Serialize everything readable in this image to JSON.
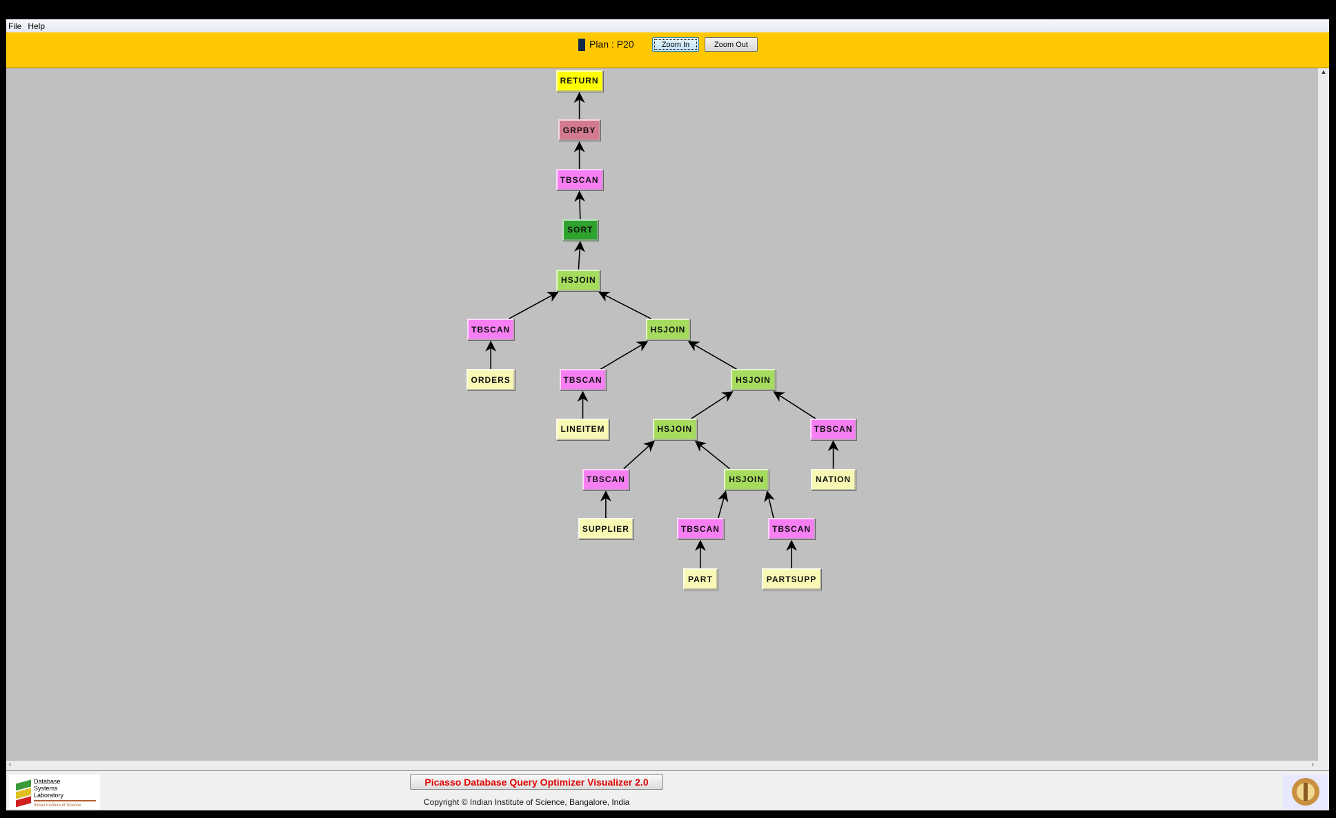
{
  "menu": {
    "items": [
      "File",
      "Help"
    ]
  },
  "toolbar": {
    "plan_label": "Plan : P20",
    "zoom_in": "Zoom In",
    "zoom_out": "Zoom Out",
    "plan_color": "#10284a"
  },
  "colors": {
    "RETURN": "#ffff00",
    "GRPBY": "#d47a90",
    "TBSCAN": "#f77ff3",
    "SORT": "#2ea32e",
    "HSJOIN": "#a6dc5e",
    "TABLE": "#f8f8b4",
    "background": "#c0c0c0",
    "toolbar": "#ffc800"
  },
  "plan_tree": {
    "nodes": [
      {
        "id": "n1",
        "label": "RETURN",
        "type": "RETURN"
      },
      {
        "id": "n2",
        "label": "GRPBY",
        "type": "GRPBY",
        "parent": "n1"
      },
      {
        "id": "n3",
        "label": "TBSCAN",
        "type": "TBSCAN",
        "parent": "n2"
      },
      {
        "id": "n4",
        "label": "SORT",
        "type": "SORT",
        "parent": "n3"
      },
      {
        "id": "n5",
        "label": "HSJOIN",
        "type": "HSJOIN",
        "parent": "n4"
      },
      {
        "id": "n6",
        "label": "TBSCAN",
        "type": "TBSCAN",
        "parent": "n5"
      },
      {
        "id": "n7",
        "label": "HSJOIN",
        "type": "HSJOIN",
        "parent": "n5"
      },
      {
        "id": "n8",
        "label": "ORDERS",
        "type": "TABLE",
        "parent": "n6"
      },
      {
        "id": "n9",
        "label": "TBSCAN",
        "type": "TBSCAN",
        "parent": "n7"
      },
      {
        "id": "n10",
        "label": "HSJOIN",
        "type": "HSJOIN",
        "parent": "n7"
      },
      {
        "id": "n11",
        "label": "LINEITEM",
        "type": "TABLE",
        "parent": "n9"
      },
      {
        "id": "n12",
        "label": "HSJOIN",
        "type": "HSJOIN",
        "parent": "n10"
      },
      {
        "id": "n13",
        "label": "TBSCAN",
        "type": "TBSCAN",
        "parent": "n10"
      },
      {
        "id": "n14",
        "label": "TBSCAN",
        "type": "TBSCAN",
        "parent": "n12"
      },
      {
        "id": "n15",
        "label": "HSJOIN",
        "type": "HSJOIN",
        "parent": "n12"
      },
      {
        "id": "n16",
        "label": "NATION",
        "type": "TABLE",
        "parent": "n13"
      },
      {
        "id": "n17",
        "label": "SUPPLIER",
        "type": "TABLE",
        "parent": "n14"
      },
      {
        "id": "n18",
        "label": "TBSCAN",
        "type": "TBSCAN",
        "parent": "n15"
      },
      {
        "id": "n19",
        "label": "TBSCAN",
        "type": "TBSCAN",
        "parent": "n15"
      },
      {
        "id": "n20",
        "label": "PART",
        "type": "TABLE",
        "parent": "n18"
      },
      {
        "id": "n21",
        "label": "PARTSUPP",
        "type": "TABLE",
        "parent": "n19"
      }
    ]
  },
  "footer": {
    "title": "Picasso Database Query Optimizer Visualizer 2.0",
    "copyright": "Copyright © Indian Institute of Science, Bangalore, India",
    "logo_text": "Database Systems Laboratory",
    "logo_subtext": "Indian Institute of Science"
  }
}
